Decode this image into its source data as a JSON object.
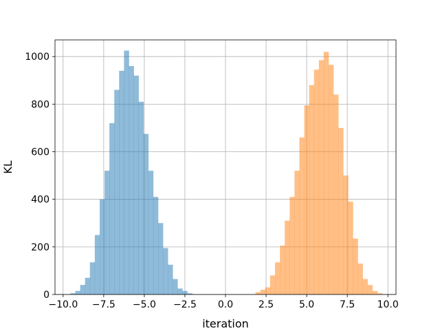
{
  "chart_data": {
    "type": "histogram",
    "title": "",
    "xlabel": "iteration",
    "ylabel": "KL",
    "xlim": [
      -10.5,
      10.5
    ],
    "ylim": [
      0,
      1070
    ],
    "grid": true,
    "xticks": [
      -10,
      -7.5,
      -5,
      -2.5,
      0,
      2.5,
      5,
      7.5,
      10
    ],
    "xtick_labels": [
      "−10.0",
      "−7.5",
      "−5.0",
      "−2.5",
      "0.0",
      "2.5",
      "5.0",
      "7.5",
      "10.0"
    ],
    "yticks": [
      0,
      200,
      400,
      600,
      800,
      1000
    ],
    "ytick_labels": [
      "0",
      "200",
      "400",
      "600",
      "800",
      "1000"
    ],
    "series": [
      {
        "color": "#1f77b4",
        "opacity": 0.5,
        "bins": [
          {
            "x0": -9.55,
            "x1": -9.25,
            "value": 5
          },
          {
            "x0": -9.25,
            "x1": -8.95,
            "value": 15
          },
          {
            "x0": -8.95,
            "x1": -8.65,
            "value": 40
          },
          {
            "x0": -8.65,
            "x1": -8.35,
            "value": 70
          },
          {
            "x0": -8.35,
            "x1": -8.05,
            "value": 135
          },
          {
            "x0": -8.05,
            "x1": -7.75,
            "value": 250
          },
          {
            "x0": -7.75,
            "x1": -7.45,
            "value": 400
          },
          {
            "x0": -7.45,
            "x1": -7.15,
            "value": 520
          },
          {
            "x0": -7.15,
            "x1": -6.85,
            "value": 720
          },
          {
            "x0": -6.85,
            "x1": -6.55,
            "value": 860
          },
          {
            "x0": -6.55,
            "x1": -6.25,
            "value": 940
          },
          {
            "x0": -6.25,
            "x1": -5.95,
            "value": 1025
          },
          {
            "x0": -5.95,
            "x1": -5.65,
            "value": 960
          },
          {
            "x0": -5.65,
            "x1": -5.35,
            "value": 920
          },
          {
            "x0": -5.35,
            "x1": -5.05,
            "value": 810
          },
          {
            "x0": -5.05,
            "x1": -4.75,
            "value": 675
          },
          {
            "x0": -4.75,
            "x1": -4.45,
            "value": 520
          },
          {
            "x0": -4.45,
            "x1": -4.15,
            "value": 410
          },
          {
            "x0": -4.15,
            "x1": -3.85,
            "value": 300
          },
          {
            "x0": -3.85,
            "x1": -3.55,
            "value": 195
          },
          {
            "x0": -3.55,
            "x1": -3.25,
            "value": 125
          },
          {
            "x0": -3.25,
            "x1": -2.95,
            "value": 65
          },
          {
            "x0": -2.95,
            "x1": -2.65,
            "value": 25
          },
          {
            "x0": -2.65,
            "x1": -2.35,
            "value": 15
          },
          {
            "x0": -2.35,
            "x1": -2.05,
            "value": 5
          }
        ]
      },
      {
        "color": "#ff7f0e",
        "opacity": 0.5,
        "bins": [
          {
            "x0": 1.85,
            "x1": 2.15,
            "value": 10
          },
          {
            "x0": 2.15,
            "x1": 2.45,
            "value": 20
          },
          {
            "x0": 2.45,
            "x1": 2.75,
            "value": 30
          },
          {
            "x0": 2.75,
            "x1": 3.05,
            "value": 80
          },
          {
            "x0": 3.05,
            "x1": 3.35,
            "value": 135
          },
          {
            "x0": 3.35,
            "x1": 3.65,
            "value": 205
          },
          {
            "x0": 3.65,
            "x1": 3.95,
            "value": 310
          },
          {
            "x0": 3.95,
            "x1": 4.25,
            "value": 410
          },
          {
            "x0": 4.25,
            "x1": 4.55,
            "value": 520
          },
          {
            "x0": 4.55,
            "x1": 4.85,
            "value": 660
          },
          {
            "x0": 4.85,
            "x1": 5.15,
            "value": 795
          },
          {
            "x0": 5.15,
            "x1": 5.45,
            "value": 880
          },
          {
            "x0": 5.45,
            "x1": 5.75,
            "value": 945
          },
          {
            "x0": 5.75,
            "x1": 6.05,
            "value": 985
          },
          {
            "x0": 6.05,
            "x1": 6.35,
            "value": 1020
          },
          {
            "x0": 6.35,
            "x1": 6.65,
            "value": 965
          },
          {
            "x0": 6.65,
            "x1": 6.95,
            "value": 840
          },
          {
            "x0": 6.95,
            "x1": 7.25,
            "value": 700
          },
          {
            "x0": 7.25,
            "x1": 7.55,
            "value": 500
          },
          {
            "x0": 7.55,
            "x1": 7.85,
            "value": 390
          },
          {
            "x0": 7.85,
            "x1": 8.15,
            "value": 235
          },
          {
            "x0": 8.15,
            "x1": 8.45,
            "value": 130
          },
          {
            "x0": 8.45,
            "x1": 8.75,
            "value": 65
          },
          {
            "x0": 8.75,
            "x1": 9.05,
            "value": 40
          },
          {
            "x0": 9.05,
            "x1": 9.35,
            "value": 15
          },
          {
            "x0": 9.35,
            "x1": 9.65,
            "value": 5
          }
        ]
      }
    ]
  }
}
